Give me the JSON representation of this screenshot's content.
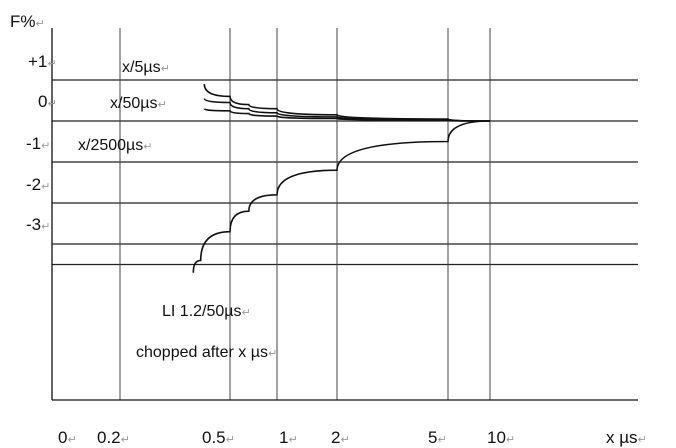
{
  "chart_data": {
    "type": "line",
    "title": "",
    "ylabel": "F%",
    "xlabel": "x µs",
    "ylim": [
      -4,
      1
    ],
    "xlim": [
      0,
      12
    ],
    "y_ticks": [
      {
        "value": 1,
        "label": "+1"
      },
      {
        "value": 0,
        "label": "0"
      },
      {
        "value": -1,
        "label": "-1"
      },
      {
        "value": -2,
        "label": "-2"
      },
      {
        "value": -3,
        "label": "-3"
      }
    ],
    "x_ticks": [
      {
        "value": 0,
        "label": "0"
      },
      {
        "value": 0.2,
        "label": "0.2"
      },
      {
        "value": 0.5,
        "label": "0.5"
      },
      {
        "value": 1,
        "label": "1"
      },
      {
        "value": 2,
        "label": "2"
      },
      {
        "value": 5,
        "label": "5"
      },
      {
        "value": 10,
        "label": "10"
      }
    ],
    "return_mark": "↵",
    "series": [
      {
        "name": "x/5µs",
        "x": [
          0.43,
          0.5,
          0.7,
          1,
          2,
          5,
          10
        ],
        "y": [
          0.9,
          0.6,
          0.4,
          0.3,
          0.15,
          0.05,
          0
        ]
      },
      {
        "name": "x/50µs",
        "x": [
          0.43,
          0.5,
          0.7,
          1,
          2,
          5,
          10
        ],
        "y": [
          0.55,
          0.45,
          0.3,
          0.2,
          0.1,
          0.03,
          0
        ]
      },
      {
        "name": "x/2500µs",
        "x": [
          0.43,
          0.5,
          0.7,
          1,
          2,
          5,
          10
        ],
        "y": [
          0.3,
          0.25,
          0.18,
          0.12,
          0.06,
          0.02,
          0
        ]
      },
      {
        "name": "LI 1.2/50µs",
        "x": [
          0.4,
          0.42,
          0.5,
          0.7,
          1,
          2,
          5,
          10
        ],
        "y": [
          -3.7,
          -3.4,
          -2.7,
          -2.2,
          -1.8,
          -1.2,
          -0.5,
          0
        ]
      }
    ],
    "annotations": [
      "x/5µs",
      "x/50µs",
      "x/2500µs",
      "LI 1.2/50µs",
      "chopped after x µs"
    ],
    "grid": true
  }
}
